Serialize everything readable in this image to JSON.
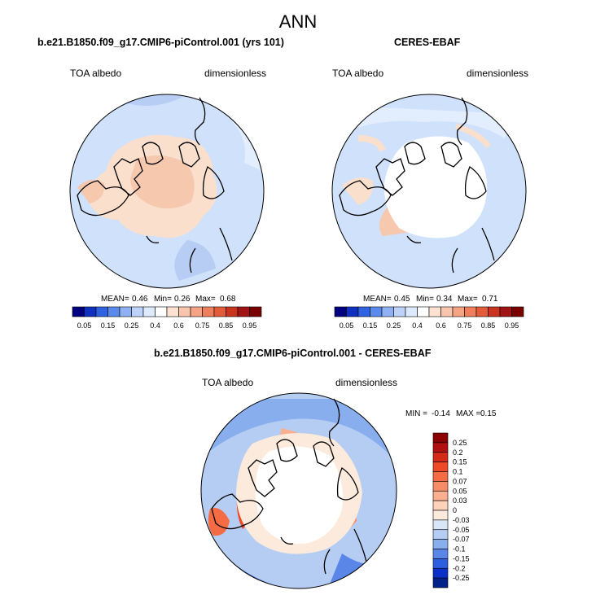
{
  "title": "ANN",
  "chart_data": [
    {
      "type": "heatmap",
      "projection": "north polar stereographic",
      "title": "b.e21.B1850.f09_g17.CMIP6-piControl.001 (yrs 101)",
      "left_label": "TOA albedo",
      "right_label": "dimensionless",
      "stats": {
        "mean_label": "MEAN=",
        "mean": "0.46",
        "min_label": "Min=",
        "min": "0.26",
        "max_label": "Max=",
        "max": "0.68"
      },
      "colorbar": {
        "orientation": "horizontal",
        "tick_labels": [
          "0.05",
          "0.15",
          "0.25",
          "0.4",
          "0.6",
          "0.75",
          "0.85",
          "0.95"
        ],
        "colors": [
          "#000080",
          "#1030c0",
          "#2e62e0",
          "#5a8aec",
          "#8fb0f2",
          "#bcd2f8",
          "#dde9fc",
          "#ffffff",
          "#fde2d2",
          "#f9c6ad",
          "#f4a482",
          "#ef7f5c",
          "#e45b39",
          "#c83420",
          "#a01414",
          "#7a0000"
        ]
      }
    },
    {
      "type": "heatmap",
      "projection": "north polar stereographic",
      "title": "CERES-EBAF",
      "left_label": "TOA albedo",
      "right_label": "dimensionless",
      "stats": {
        "mean_label": "MEAN=",
        "mean": "0.45",
        "min_label": "Min=",
        "min": "0.34",
        "max_label": "Max=",
        "max": "0.71"
      },
      "colorbar": {
        "orientation": "horizontal",
        "tick_labels": [
          "0.05",
          "0.15",
          "0.25",
          "0.4",
          "0.6",
          "0.75",
          "0.85",
          "0.95"
        ],
        "colors": [
          "#000080",
          "#1030c0",
          "#2e62e0",
          "#5a8aec",
          "#8fb0f2",
          "#bcd2f8",
          "#dde9fc",
          "#ffffff",
          "#fde2d2",
          "#f9c6ad",
          "#f4a482",
          "#ef7f5c",
          "#e45b39",
          "#c83420",
          "#a01414",
          "#7a0000"
        ]
      }
    },
    {
      "type": "heatmap",
      "projection": "north polar stereographic",
      "title": "b.e21.B1850.f09_g17.CMIP6-piControl.001 - CERES-EBAF",
      "left_label": "TOA albedo",
      "right_label": "dimensionless",
      "stats": {
        "min_label": "MIN =",
        "min": "-0.14",
        "max_label": "MAX =",
        "max": "0.15"
      },
      "colorbar": {
        "orientation": "vertical",
        "tick_labels": [
          "0.25",
          "0.2",
          "0.15",
          "0.1",
          "0.07",
          "0.05",
          "0.03",
          "0",
          "-0.03",
          "-0.05",
          "-0.07",
          "-0.1",
          "-0.15",
          "-0.2",
          "-0.25"
        ],
        "colors": [
          "#8b0000",
          "#b01010",
          "#d42a18",
          "#ee4a28",
          "#f46b44",
          "#f78d68",
          "#fab08f",
          "#fcd2b9",
          "#fcebdc",
          "#d8e6f8",
          "#b5cdf3",
          "#88aeee",
          "#5a86e8",
          "#2d5ee0",
          "#0a30c8",
          "#00208a"
        ]
      }
    }
  ]
}
